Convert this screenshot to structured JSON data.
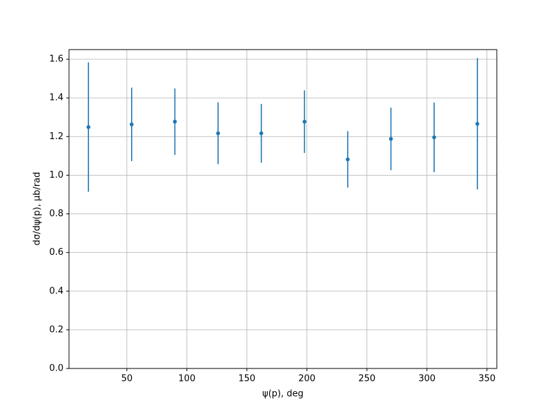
{
  "chart_data": {
    "type": "errorbar",
    "x_label": "ψ(p), deg",
    "y_label": "dσ/dψ(p), μb/rad",
    "x": [
      18,
      54,
      90,
      126,
      162,
      198,
      234,
      270,
      306,
      342
    ],
    "series": [
      {
        "color": "#1f77b4",
        "values": [
          1.249,
          1.263,
          1.277,
          1.217,
          1.217,
          1.277,
          1.082,
          1.188,
          1.196,
          1.266
        ],
        "errors": [
          0.335,
          0.19,
          0.172,
          0.16,
          0.152,
          0.162,
          0.146,
          0.162,
          0.18,
          0.34
        ]
      }
    ],
    "xlim": [
      1.8,
      358.2
    ],
    "ylim": [
      0,
      1.65
    ],
    "xticks": [
      50,
      100,
      150,
      200,
      250,
      300,
      350
    ],
    "yticks": [
      {
        "value": 0,
        "label": "0.0"
      },
      {
        "value": 0.2,
        "label": "0.2"
      },
      {
        "value": 0.4,
        "label": "0.4"
      },
      {
        "value": 0.6,
        "label": "0.6"
      },
      {
        "value": 0.8,
        "label": "0.8"
      },
      {
        "value": 1.0,
        "label": "1.0"
      },
      {
        "value": 1.2,
        "label": "1.2"
      },
      {
        "value": 1.4,
        "label": "1.4"
      },
      {
        "value": 1.6,
        "label": "1.6"
      }
    ],
    "grid": true
  }
}
